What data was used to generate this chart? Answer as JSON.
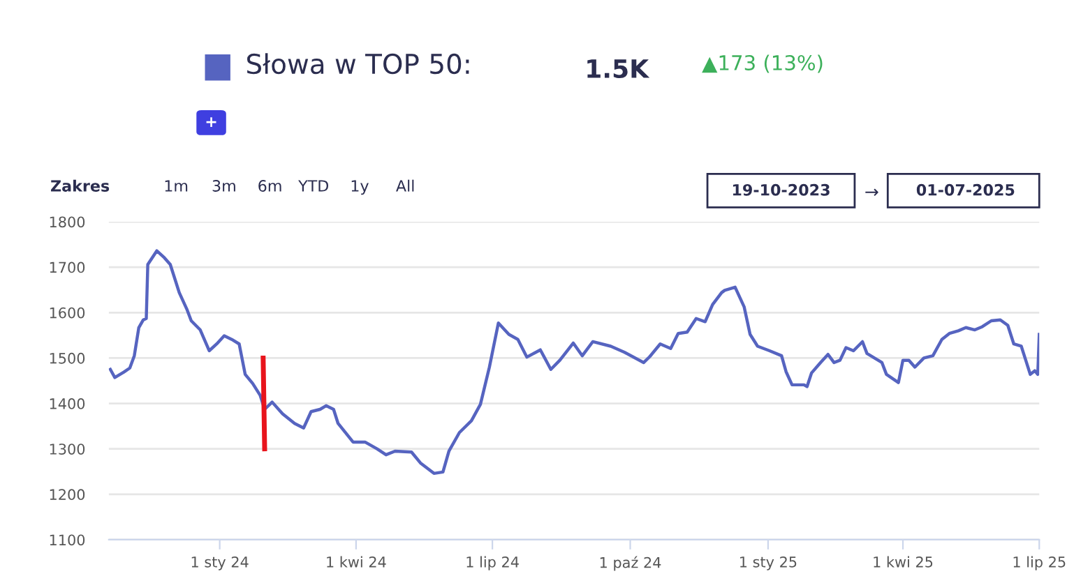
{
  "chart_data": {
    "type": "line",
    "title": "Słowa w TOP 50:",
    "annotations": [
      "1.5K",
      "▲173 (13%)",
      "+",
      "Zakres",
      "1m",
      "3m",
      "6m",
      "YTD",
      "1y",
      "All",
      "19-10-2023",
      "→",
      "01-07-2025"
    ],
    "series": [
      {
        "color": "#5664c0",
        "x": [
          "2023-10-20",
          "2023-10-23",
          "2023-10-29",
          "2023-11-02",
          "2023-11-05",
          "2023-11-08",
          "2023-11-11",
          "2023-11-13",
          "2023-11-14",
          "2023-11-17",
          "2023-11-20",
          "2023-11-25",
          "2023-11-29",
          "2023-12-05",
          "2023-12-10",
          "2023-12-13",
          "2023-12-19",
          "2023-12-25",
          "2023-12-30",
          "2024-01-04",
          "2024-01-09",
          "2024-01-14",
          "2024-01-18",
          "2024-01-23",
          "2024-01-28",
          "2024-01-31",
          "2024-02-05",
          "2024-02-12",
          "2024-02-20",
          "2024-02-26",
          "2024-03-02",
          "2024-03-08",
          "2024-03-12",
          "2024-03-17",
          "2024-03-20",
          "2024-03-30",
          "2024-04-07",
          "2024-04-15",
          "2024-04-21",
          "2024-04-27",
          "2024-05-08",
          "2024-05-14",
          "2024-05-23",
          "2024-05-29",
          "2024-06-02",
          "2024-06-09",
          "2024-06-17",
          "2024-06-23",
          "2024-06-29",
          "2024-07-05",
          "2024-07-12",
          "2024-07-18",
          "2024-07-24",
          "2024-08-02",
          "2024-08-09",
          "2024-08-15",
          "2024-08-24",
          "2024-08-30",
          "2024-09-06",
          "2024-09-18",
          "2024-09-27",
          "2024-10-10",
          "2024-10-14",
          "2024-10-21",
          "2024-10-28",
          "2024-11-02",
          "2024-11-08",
          "2024-11-14",
          "2024-11-20",
          "2024-11-25",
          "2024-12-01",
          "2024-12-03",
          "2024-12-10",
          "2024-12-16",
          "2024-12-20",
          "2024-12-25",
          "2025-01-02",
          "2025-01-10",
          "2025-01-13",
          "2025-01-17",
          "2025-01-25",
          "2025-01-27",
          "2025-01-30",
          "2025-02-05",
          "2025-02-10",
          "2025-02-14",
          "2025-02-18",
          "2025-02-22",
          "2025-02-27",
          "2025-03-05",
          "2025-03-08",
          "2025-03-18",
          "2025-03-21",
          "2025-03-29",
          "2025-04-01",
          "2025-04-05",
          "2025-04-09",
          "2025-04-15",
          "2025-04-21",
          "2025-04-27",
          "2025-05-02",
          "2025-05-08",
          "2025-05-13",
          "2025-05-19",
          "2025-05-24",
          "2025-05-30",
          "2025-06-05",
          "2025-06-10",
          "2025-06-14",
          "2025-06-19",
          "2025-06-22",
          "2025-06-25",
          "2025-06-28",
          "2025-06-30",
          "2025-07-01"
        ],
        "values": [
          1475,
          1457,
          1469,
          1478,
          1505,
          1567,
          1584,
          1587,
          1706,
          1721,
          1736,
          1721,
          1706,
          1644,
          1608,
          1582,
          1562,
          1516,
          1531,
          1549,
          1541,
          1531,
          1464,
          1444,
          1418,
          1387,
          1403,
          1377,
          1356,
          1346,
          1382,
          1387,
          1395,
          1387,
          1356,
          1315,
          1315,
          1300,
          1287,
          1295,
          1293,
          1269,
          1246,
          1249,
          1295,
          1336,
          1362,
          1398,
          1480,
          1577,
          1552,
          1541,
          1502,
          1518,
          1475,
          1495,
          1533,
          1505,
          1536,
          1526,
          1513,
          1490,
          1503,
          1531,
          1521,
          1554,
          1557,
          1587,
          1580,
          1618,
          1644,
          1649,
          1656,
          1613,
          1552,
          1526,
          1516,
          1505,
          1470,
          1441,
          1441,
          1437,
          1467,
          1490,
          1508,
          1490,
          1495,
          1523,
          1516,
          1536,
          1510,
          1490,
          1464,
          1446,
          1495,
          1495,
          1480,
          1500,
          1505,
          1541,
          1554,
          1560,
          1567,
          1562,
          1569,
          1582,
          1584,
          1572,
          1531,
          1526,
          1495,
          1464,
          1472,
          1464,
          1552
        ]
      },
      {
        "color": "#e8141c",
        "x": [
          "2024-01-30",
          "2024-01-31"
        ],
        "values": [
          1500,
          1300
        ]
      }
    ],
    "xlim": [
      "2023-10-19",
      "2025-07-01"
    ],
    "xticks": [
      {
        "value": "2024-01-01",
        "label": "1 sty 24"
      },
      {
        "value": "2024-04-01",
        "label": "1 kwi 24"
      },
      {
        "value": "2024-07-01",
        "label": "1 lip 24"
      },
      {
        "value": "2024-10-01",
        "label": "1 paź 24"
      },
      {
        "value": "2025-01-01",
        "label": "1 sty 25"
      },
      {
        "value": "2025-04-01",
        "label": "1 kwi 25"
      },
      {
        "value": "2025-07-01",
        "label": "1 lip 25"
      }
    ],
    "ylim": [
      1100,
      1800
    ],
    "yticks": [
      1100,
      1200,
      1300,
      1400,
      1500,
      1600,
      1700,
      1800
    ],
    "grid": "y",
    "legend": false,
    "marker": "none",
    "line_style": "solid"
  }
}
